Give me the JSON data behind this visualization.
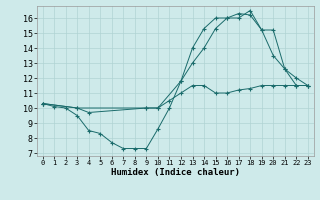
{
  "title": "",
  "xlabel": "Humidex (Indice chaleur)",
  "bg_color": "#ceeaea",
  "grid_color": "#b0d4d4",
  "line_color": "#1a6b6b",
  "xlim": [
    -0.5,
    23.5
  ],
  "ylim": [
    6.8,
    16.8
  ],
  "yticks": [
    7,
    8,
    9,
    10,
    11,
    12,
    13,
    14,
    15,
    16
  ],
  "xticks": [
    0,
    1,
    2,
    3,
    4,
    5,
    6,
    7,
    8,
    9,
    10,
    11,
    12,
    13,
    14,
    15,
    16,
    17,
    18,
    19,
    20,
    21,
    22,
    23
  ],
  "line1_x": [
    0,
    1,
    2,
    3,
    4,
    5,
    6,
    7,
    8,
    9,
    10,
    11,
    12,
    13,
    14,
    15,
    16,
    17,
    18,
    19,
    20,
    21,
    22,
    23
  ],
  "line1_y": [
    10.3,
    10.1,
    10.0,
    9.5,
    8.5,
    8.3,
    7.7,
    7.3,
    7.3,
    7.3,
    8.6,
    10.0,
    11.8,
    14.0,
    15.3,
    16.0,
    16.0,
    16.3,
    16.2,
    15.2,
    13.5,
    12.6,
    12.0,
    11.5
  ],
  "line2_x": [
    0,
    3,
    4,
    9,
    10,
    12,
    13,
    14,
    15,
    16,
    17,
    18,
    19,
    20,
    21,
    22,
    23
  ],
  "line2_y": [
    10.3,
    10.0,
    9.7,
    10.0,
    10.0,
    11.8,
    13.0,
    14.0,
    15.3,
    16.0,
    16.0,
    16.5,
    15.2,
    15.2,
    12.6,
    11.5,
    11.5
  ],
  "line3_x": [
    0,
    3,
    9,
    10,
    11,
    12,
    13,
    14,
    15,
    16,
    17,
    18,
    19,
    20,
    21,
    22,
    23
  ],
  "line3_y": [
    10.3,
    10.0,
    10.0,
    10.0,
    10.5,
    11.0,
    11.5,
    11.5,
    11.0,
    11.0,
    11.2,
    11.3,
    11.5,
    11.5,
    11.5,
    11.5,
    11.5
  ]
}
